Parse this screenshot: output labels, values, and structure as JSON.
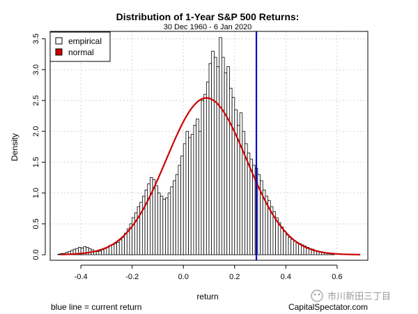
{
  "chart_data": {
    "type": "bar",
    "title": "Distribution of 1-Year S&P 500 Returns:",
    "subtitle": "30 Dec 1960 - 6 Jan 2020",
    "xlabel": "return",
    "ylabel": "Density",
    "xlim": [
      -0.52,
      0.72
    ],
    "ylim": [
      -0.09,
      3.62
    ],
    "x_ticks": [
      -0.4,
      -0.2,
      0.0,
      0.2,
      0.4,
      0.6
    ],
    "x_tick_labels": [
      "-0.4",
      "-0.2",
      "0.0",
      "0.2",
      "0.4",
      "0.6"
    ],
    "y_ticks": [
      0.0,
      0.5,
      1.0,
      1.5,
      2.0,
      2.5,
      3.0,
      3.5
    ],
    "y_tick_labels": [
      "0.0",
      "0.5",
      "1.0",
      "1.5",
      "2.0",
      "2.5",
      "3.0",
      "3.5"
    ],
    "grid": true,
    "legend": {
      "position": "top-left",
      "items": [
        {
          "label": "empirical",
          "color": "#ffffff",
          "border": "#000000"
        },
        {
          "label": "normal",
          "color": "#cc0000",
          "border": "#000000"
        }
      ]
    },
    "histogram": {
      "name": "empirical",
      "bin_width": 0.01,
      "bin_start": -0.49,
      "densities": [
        0.01,
        0.02,
        0.02,
        0.04,
        0.05,
        0.07,
        0.09,
        0.1,
        0.12,
        0.11,
        0.13,
        0.12,
        0.1,
        0.08,
        0.06,
        0.05,
        0.06,
        0.08,
        0.1,
        0.12,
        0.15,
        0.16,
        0.18,
        0.2,
        0.24,
        0.28,
        0.35,
        0.42,
        0.5,
        0.6,
        0.68,
        0.78,
        0.85,
        0.95,
        1.05,
        1.15,
        1.25,
        1.22,
        1.12,
        1.0,
        0.95,
        0.9,
        0.92,
        1.0,
        1.1,
        1.2,
        1.3,
        1.45,
        1.6,
        1.8,
        2.0,
        1.9,
        1.95,
        2.1,
        2.2,
        2.0,
        2.5,
        2.6,
        2.8,
        3.1,
        3.3,
        3.2,
        3.05,
        3.52,
        3.2,
        2.95,
        3.05,
        2.7,
        2.55,
        2.35,
        2.1,
        2.3,
        2.0,
        1.8,
        1.65,
        1.55,
        1.45,
        1.4,
        1.3,
        1.2,
        1.05,
        0.95,
        0.88,
        0.78,
        0.7,
        0.6,
        0.52,
        0.45,
        0.38,
        0.32,
        0.28,
        0.25,
        0.22,
        0.2,
        0.18,
        0.16,
        0.14,
        0.12,
        0.1,
        0.09,
        0.07,
        0.06,
        0.05,
        0.04,
        0.03,
        0.02,
        0.02,
        0.01
      ]
    },
    "normal_curve": {
      "name": "normal",
      "color": "#cc0000",
      "mean": 0.09,
      "sd": 0.157,
      "x_range": [
        -0.48,
        0.69
      ]
    },
    "current_return_line": {
      "x": 0.285,
      "color": "#0000cc"
    },
    "footer_left": "blue line = current return",
    "footer_right": "CapitalSpectator.com",
    "watermark": "市川新田三丁目"
  }
}
